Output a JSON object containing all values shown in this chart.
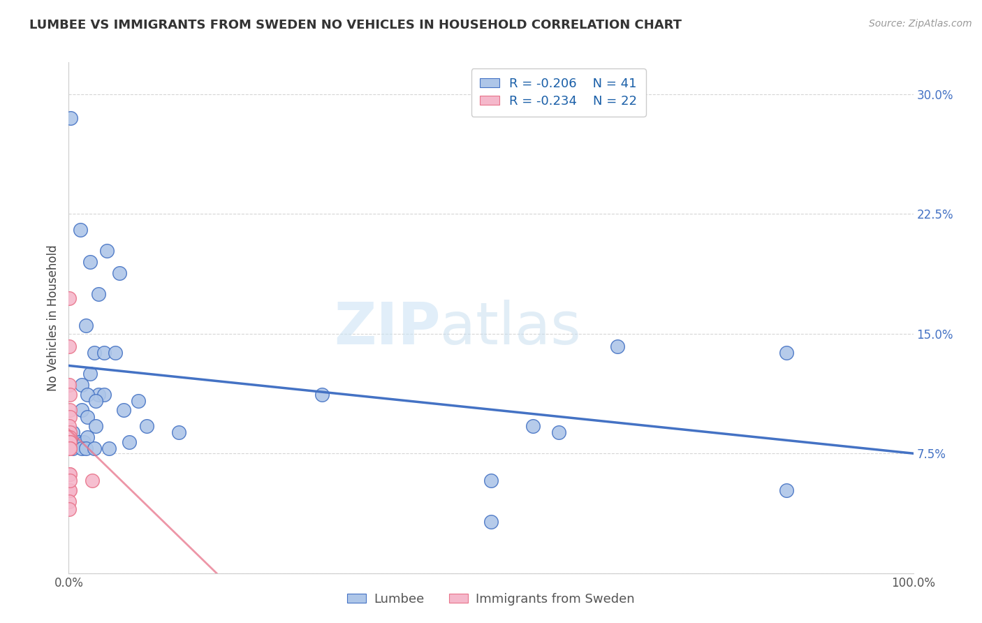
{
  "title": "LUMBEE VS IMMIGRANTS FROM SWEDEN NO VEHICLES IN HOUSEHOLD CORRELATION CHART",
  "source": "Source: ZipAtlas.com",
  "ylabel": "No Vehicles in Household",
  "legend_blue_r": "R = -0.206",
  "legend_blue_n": "N = 41",
  "legend_pink_r": "R = -0.234",
  "legend_pink_n": "N = 22",
  "legend_label_blue": "Lumbee",
  "legend_label_pink": "Immigrants from Sweden",
  "blue_color": "#aec6e8",
  "pink_color": "#f5b8cb",
  "blue_line_color": "#4472c4",
  "pink_line_color": "#e8738a",
  "blue_points": [
    [
      0.18,
      28.5
    ],
    [
      1.4,
      21.5
    ],
    [
      2.5,
      19.5
    ],
    [
      4.5,
      20.2
    ],
    [
      6.0,
      18.8
    ],
    [
      3.5,
      17.5
    ],
    [
      2.0,
      15.5
    ],
    [
      3.0,
      13.8
    ],
    [
      4.2,
      13.8
    ],
    [
      5.5,
      13.8
    ],
    [
      2.5,
      12.5
    ],
    [
      1.5,
      11.8
    ],
    [
      3.5,
      11.2
    ],
    [
      2.2,
      11.2
    ],
    [
      4.2,
      11.2
    ],
    [
      1.5,
      10.2
    ],
    [
      3.2,
      10.8
    ],
    [
      6.5,
      10.2
    ],
    [
      2.2,
      9.8
    ],
    [
      3.2,
      9.2
    ],
    [
      8.2,
      10.8
    ],
    [
      9.2,
      9.2
    ],
    [
      0.5,
      8.8
    ],
    [
      1.2,
      8.2
    ],
    [
      1.8,
      8.2
    ],
    [
      2.2,
      8.5
    ],
    [
      7.2,
      8.2
    ],
    [
      13.0,
      8.8
    ],
    [
      0.5,
      7.8
    ],
    [
      1.5,
      7.8
    ],
    [
      2.0,
      7.8
    ],
    [
      3.0,
      7.8
    ],
    [
      4.8,
      7.8
    ],
    [
      55.0,
      9.2
    ],
    [
      58.0,
      8.8
    ],
    [
      65.0,
      14.2
    ],
    [
      85.0,
      13.8
    ],
    [
      85.0,
      5.2
    ],
    [
      50.0,
      5.8
    ],
    [
      50.0,
      3.2
    ],
    [
      30.0,
      11.2
    ]
  ],
  "pink_points": [
    [
      0.05,
      17.2
    ],
    [
      0.06,
      14.2
    ],
    [
      0.08,
      11.8
    ],
    [
      0.09,
      11.2
    ],
    [
      0.1,
      10.2
    ],
    [
      0.11,
      9.8
    ],
    [
      0.08,
      9.2
    ],
    [
      0.1,
      8.8
    ],
    [
      0.12,
      8.5
    ],
    [
      0.09,
      8.2
    ],
    [
      0.11,
      8.2
    ],
    [
      0.12,
      7.8
    ],
    [
      0.07,
      7.8
    ],
    [
      0.09,
      7.8
    ],
    [
      0.07,
      6.2
    ],
    [
      0.1,
      6.2
    ],
    [
      0.06,
      5.2
    ],
    [
      0.09,
      5.2
    ],
    [
      0.11,
      5.8
    ],
    [
      0.06,
      4.5
    ],
    [
      0.08,
      4.0
    ],
    [
      2.8,
      5.8
    ]
  ],
  "xlim": [
    0,
    100
  ],
  "ylim": [
    0,
    32
  ],
  "yticks": [
    0,
    7.5,
    15.0,
    22.5,
    30.0
  ],
  "ytick_labels": [
    "",
    "7.5%",
    "15.0%",
    "22.5%",
    "30.0%"
  ],
  "blue_trend_x": [
    0,
    100
  ],
  "blue_trend_y": [
    13.0,
    7.5
  ],
  "pink_trend_x": [
    0,
    17.5
  ],
  "pink_trend_y": [
    9.0,
    0.0
  ]
}
